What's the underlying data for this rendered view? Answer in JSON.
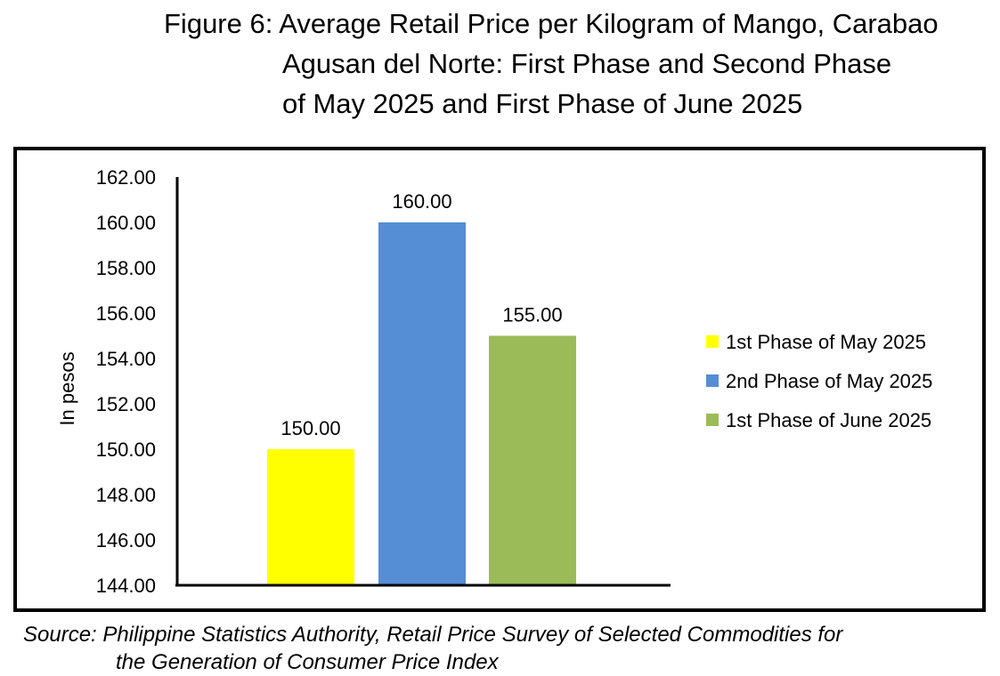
{
  "title": {
    "line1": "Figure 6: Average Retail Price per Kilogram of Mango, Carabao",
    "line2": "Agusan del Norte: First Phase and Second Phase",
    "line3": "of May 2025 and First Phase of June 2025"
  },
  "source": {
    "line1": "Source: Philippine Statistics Authority, Retail Price Survey of Selected Commodities for",
    "line2": "the Generation of Consumer Price Index"
  },
  "chart_data": {
    "type": "bar",
    "ylabel": "In pesos",
    "xlabel": "",
    "ylim": [
      144,
      162
    ],
    "yticks": [
      "144.00",
      "146.00",
      "148.00",
      "150.00",
      "152.00",
      "154.00",
      "156.00",
      "158.00",
      "160.00",
      "162.00"
    ],
    "grid": false,
    "legend_position": "right",
    "series": [
      {
        "name": "1st Phase of May 2025",
        "value": 150.0,
        "label": "150.00",
        "color": "#ffff00"
      },
      {
        "name": "2nd Phase of May 2025",
        "value": 160.0,
        "label": "160.00",
        "color": "#558ed5"
      },
      {
        "name": "1st Phase of June 2025",
        "value": 155.0,
        "label": "155.00",
        "color": "#9bbb59"
      }
    ]
  }
}
